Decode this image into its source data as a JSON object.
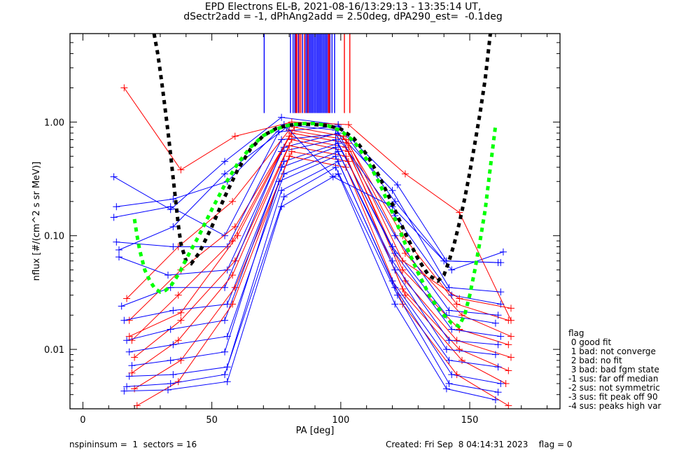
{
  "chart_data": {
    "type": "line",
    "title": "EPD Electrons EL-B, 2021-08-16/13:29:13 - 13:35:14 UT,",
    "subtitle": "dSectr2add = -1, dPhAng2add = 2.50deg, dPA290_est=  -0.1deg",
    "xlabel": "PA [deg]",
    "ylabel": "nflux [#/(cm^2 s sr MeV)]",
    "xlim": [
      -5,
      185
    ],
    "ylim": [
      0.003,
      6.0
    ],
    "yscale": "log",
    "x_ticks": [
      0,
      50,
      100,
      150
    ],
    "x_tick_labels": [
      "0",
      "50",
      "100",
      "150"
    ],
    "y_ticks": [
      0.01,
      0.1,
      1.0
    ],
    "y_tick_labels": [
      "0.01",
      "0.10",
      "1.00"
    ],
    "grid": false,
    "series": [
      {
        "name": "sector spectra (blue)",
        "color": "#0000ff",
        "marker": "+",
        "traces": [
          {
            "x": [
              12,
              34,
              55,
              77,
              99,
              121,
              143,
              163
            ],
            "y": [
              0.33,
              0.17,
              0.45,
              1.1,
              0.95,
              0.2,
              0.05,
              0.072
            ]
          },
          {
            "x": [
              13,
              35,
              56,
              78,
              98,
              120,
              142,
              162
            ],
            "y": [
              0.18,
              0.21,
              0.3,
              0.95,
              0.85,
              0.25,
              0.035,
              0.032
            ]
          },
          {
            "x": [
              12,
              34,
              55,
              76,
              99,
              122,
              141,
              161
            ],
            "y": [
              0.145,
              0.18,
              0.1,
              0.82,
              0.92,
              0.28,
              0.06,
              0.058
            ]
          },
          {
            "x": [
              13,
              35,
              56,
              77,
              98,
              121,
              143,
              162
            ],
            "y": [
              0.088,
              0.08,
              0.08,
              0.7,
              0.78,
              0.15,
              0.03,
              0.025
            ]
          },
          {
            "x": [
              14,
              33,
              56,
              78,
              99,
              121,
              142,
              161
            ],
            "y": [
              0.065,
              0.045,
              0.05,
              0.6,
              0.8,
              0.1,
              0.022,
              0.02
            ]
          },
          {
            "x": [
              15,
              34,
              55,
              77,
              98,
              120,
              141,
              160
            ],
            "y": [
              0.024,
              0.035,
              0.035,
              0.55,
              0.7,
              0.08,
              0.02,
              0.017
            ]
          },
          {
            "x": [
              16,
              35,
              56,
              78,
              99,
              121,
              143,
              162
            ],
            "y": [
              0.018,
              0.022,
              0.025,
              0.45,
              0.65,
              0.07,
              0.015,
              0.013
            ]
          },
          {
            "x": [
              17,
              34,
              55,
              77,
              98,
              120,
              142,
              161
            ],
            "y": [
              0.012,
              0.015,
              0.018,
              0.4,
              0.6,
              0.06,
              0.012,
              0.011
            ]
          },
          {
            "x": [
              18,
              35,
              56,
              78,
              99,
              121,
              141,
              160
            ],
            "y": [
              0.0095,
              0.011,
              0.013,
              0.35,
              0.55,
              0.05,
              0.01,
              0.009
            ]
          },
          {
            "x": [
              19,
              34,
              55,
              76,
              98,
              120,
              142,
              161
            ],
            "y": [
              0.0072,
              0.008,
              0.0095,
              0.3,
              0.5,
              0.04,
              0.008,
              0.007
            ]
          },
          {
            "x": [
              18,
              35,
              56,
              77,
              99,
              121,
              143,
              162
            ],
            "y": [
              0.0058,
              0.006,
              0.007,
              0.25,
              0.45,
              0.035,
              0.006,
              0.005
            ]
          },
          {
            "x": [
              17,
              34,
              55,
              78,
              98,
              122,
              142,
              161
            ],
            "y": [
              0.0047,
              0.005,
              0.006,
              0.22,
              0.4,
              0.03,
              0.005,
              0.0042
            ]
          },
          {
            "x": [
              16,
              33,
              56,
              77,
              99,
              121,
              141,
              160
            ],
            "y": [
              0.0043,
              0.0044,
              0.0052,
              0.18,
              0.35,
              0.025,
              0.0045,
              0.0036
            ]
          },
          {
            "x": [
              14,
              35,
              55,
              79,
              97,
              120,
              140,
              162
            ],
            "y": [
              0.075,
              0.12,
              0.35,
              0.9,
              0.33,
              0.18,
              0.06,
              0.058
            ]
          }
        ]
      },
      {
        "name": "sector spectra (red)",
        "color": "#ff0000",
        "marker": "+",
        "traces": [
          {
            "x": [
              16,
              38,
              59,
              81,
              103,
              125,
              146,
              166
            ],
            "y": [
              2.0,
              0.38,
              0.75,
              1.0,
              0.95,
              0.35,
              0.16,
              0.018
            ]
          },
          {
            "x": [
              17,
              37,
              58,
              80,
              102,
              124,
              145,
              165
            ],
            "y": [
              0.028,
              0.08,
              0.2,
              0.85,
              0.7,
              0.1,
              0.025,
              0.018
            ]
          },
          {
            "x": [
              18,
              38,
              59,
              81,
              103,
              125,
              147,
              166
            ],
            "y": [
              0.018,
              0.05,
              0.12,
              0.8,
              0.65,
              0.07,
              0.02,
              0.013
            ]
          },
          {
            "x": [
              19,
              37,
              58,
              80,
              102,
              124,
              146,
              165
            ],
            "y": [
              0.012,
              0.03,
              0.09,
              0.75,
              0.6,
              0.05,
              0.015,
              0.011
            ]
          },
          {
            "x": [
              20,
              38,
              59,
              81,
              103,
              125,
              145,
              166
            ],
            "y": [
              0.0085,
              0.018,
              0.06,
              0.7,
              0.55,
              0.04,
              0.012,
              0.0085
            ]
          },
          {
            "x": [
              19,
              37,
              58,
              80,
              102,
              124,
              146,
              165
            ],
            "y": [
              0.0062,
              0.012,
              0.045,
              0.62,
              0.5,
              0.034,
              0.01,
              0.0065
            ]
          },
          {
            "x": [
              20,
              38,
              59,
              81,
              103,
              125,
              147,
              164
            ],
            "y": [
              0.0045,
              0.008,
              0.035,
              0.55,
              0.45,
              0.03,
              0.008,
              0.005
            ]
          },
          {
            "x": [
              21,
              37,
              58,
              80,
              102,
              124,
              145,
              165
            ],
            "y": [
              0.0032,
              0.0052,
              0.025,
              0.5,
              0.4,
              0.025,
              0.006,
              0.0032
            ]
          },
          {
            "x": [
              18,
              38,
              60,
              82,
              101,
              124,
              146,
              166
            ],
            "y": [
              0.013,
              0.021,
              0.1,
              0.9,
              0.75,
              0.06,
              0.028,
              0.023
            ]
          }
        ]
      },
      {
        "name": "fit (black)",
        "color": "#000000",
        "style": "dashed-thick",
        "x": [
          27.6,
          29,
          30,
          31,
          32,
          33,
          34,
          35,
          36,
          37,
          38,
          40,
          42,
          45,
          50,
          55,
          60,
          65,
          70,
          75,
          80,
          85,
          90,
          95,
          100,
          105,
          110,
          115,
          120,
          125,
          130,
          134,
          137.6,
          140,
          142,
          144,
          146,
          148,
          150,
          152,
          154,
          156,
          158
        ],
        "y": [
          6.0,
          4.0,
          2.8,
          1.9,
          1.25,
          0.82,
          0.52,
          0.32,
          0.2,
          0.125,
          0.085,
          0.06,
          0.057,
          0.07,
          0.12,
          0.22,
          0.38,
          0.58,
          0.76,
          0.88,
          0.94,
          0.96,
          0.95,
          0.93,
          0.87,
          0.72,
          0.52,
          0.33,
          0.19,
          0.105,
          0.062,
          0.045,
          0.04,
          0.045,
          0.06,
          0.085,
          0.13,
          0.21,
          0.36,
          0.65,
          1.2,
          2.4,
          6.0
        ]
      },
      {
        "name": "fit (green)",
        "color": "#00ff00",
        "style": "dashed-thick",
        "x": [
          20,
          21,
          22,
          24,
          26,
          28,
          30,
          32,
          34,
          36,
          38,
          40,
          45,
          50,
          55,
          60,
          65,
          70,
          75,
          80,
          85,
          90,
          95,
          100,
          105,
          110,
          115,
          120,
          125,
          130,
          135,
          140,
          143,
          145.8,
          148,
          150,
          152,
          154,
          156,
          158,
          160
        ],
        "y": [
          0.14,
          0.1,
          0.075,
          0.05,
          0.04,
          0.034,
          0.032,
          0.033,
          0.036,
          0.042,
          0.05,
          0.062,
          0.1,
          0.17,
          0.28,
          0.43,
          0.6,
          0.76,
          0.87,
          0.94,
          0.97,
          0.97,
          0.93,
          0.84,
          0.68,
          0.47,
          0.29,
          0.16,
          0.085,
          0.047,
          0.028,
          0.02,
          0.017,
          0.016,
          0.02,
          0.03,
          0.05,
          0.09,
          0.17,
          0.4,
          0.93
        ]
      }
    ],
    "vertical_markers": {
      "description": "vertical lines from top of plot (peak PA estimates)",
      "y_range": [
        1.2,
        6.0
      ],
      "blue_x": [
        70.3,
        80.5,
        81.5,
        82.2,
        83.6,
        85.2,
        86.0,
        86.5,
        87.0,
        87.5,
        88.0,
        88.5,
        89.0,
        89.5,
        90.0,
        90.5,
        91.0,
        91.5,
        92.0,
        92.5,
        93.0,
        93.5,
        94.0,
        94.5,
        95.0,
        95.8,
        96.6,
        97.6
      ],
      "red_x": [
        82.6,
        83.0,
        83.9,
        84.5,
        86.0,
        87.3,
        95.2,
        95.6,
        101.4,
        103.5
      ]
    },
    "legend": {
      "title": "flag",
      "placement": "right",
      "entries": [
        " 0 good fit",
        " 1 bad: not converge",
        " 2 bad: no fit",
        " 3 bad: bad fgm state",
        "-1 sus: far off median",
        "-2 sus: not symmetric",
        "-3 sus: fit peak off 90",
        "-4 sus: peaks high var"
      ]
    }
  },
  "footer": {
    "left": "nspininsum =  1  sectors = 16",
    "right": "Created: Fri Sep  8 04:14:31 2023    flag = 0"
  }
}
